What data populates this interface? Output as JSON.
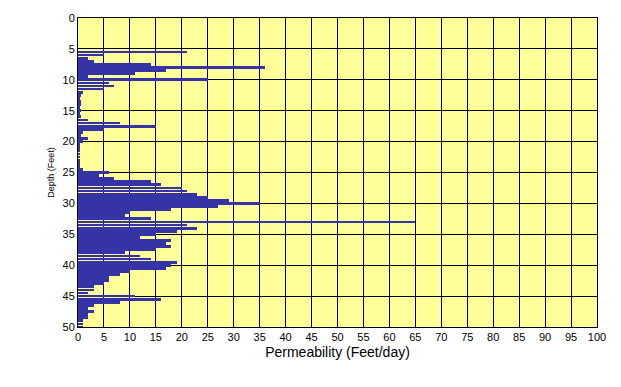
{
  "chart_data": {
    "type": "bar",
    "orientation": "horizontal",
    "xlabel": "Permeability (Feet/day)",
    "ylabel": "Depth (Feet)",
    "x": [
      5,
      5.5,
      6,
      6.5,
      7,
      7.5,
      8,
      8.5,
      9,
      9.5,
      10,
      10.5,
      11,
      11.5,
      12,
      12.5,
      13,
      13.5,
      14,
      14.5,
      15,
      15.5,
      16,
      16.5,
      17,
      17.5,
      18,
      18.5,
      19,
      19.5,
      20,
      20.5,
      21,
      21.5,
      22,
      22.5,
      23,
      23.5,
      24,
      24.5,
      25,
      25.5,
      26,
      26.5,
      27,
      27.5,
      28,
      28.5,
      29,
      29.5,
      30,
      30.5,
      31,
      31.5,
      32,
      32.5,
      33,
      33.5,
      34,
      34.5,
      35,
      35.5,
      36,
      36.5,
      37,
      37.5,
      38,
      38.5,
      39,
      39.5,
      40,
      40.5,
      41,
      41.5,
      42,
      42.5,
      43,
      43.5,
      44,
      44.5,
      45,
      45.5,
      46,
      46.5,
      47,
      47.5,
      48,
      48.5,
      49,
      49.5,
      50
    ],
    "values": [
      0,
      21,
      5,
      2,
      3,
      14,
      36,
      17,
      11,
      2,
      25,
      6,
      7,
      5,
      1,
      0.5,
      0.3,
      0.5,
      0.5,
      0.3,
      0.5,
      0.3,
      0.5,
      2,
      8,
      15,
      5,
      1,
      0.5,
      2,
      1,
      0.3,
      0.2,
      0.2,
      0.2,
      0.2,
      0.2,
      0.2,
      0.2,
      1,
      6,
      4,
      7,
      14,
      16,
      20,
      21,
      23,
      25,
      29,
      35,
      27,
      18,
      10,
      9,
      14,
      65,
      21,
      23,
      19,
      15,
      12,
      18,
      17,
      18,
      15,
      9,
      12,
      14,
      19,
      18,
      17,
      10,
      8,
      6,
      6,
      5,
      3,
      3,
      2,
      11,
      16,
      8,
      3,
      2,
      3,
      2,
      2,
      1,
      1,
      1
    ],
    "color": "#3434a6",
    "xlim": [
      0,
      100
    ],
    "xticks": [
      0,
      5,
      10,
      15,
      20,
      25,
      30,
      35,
      40,
      45,
      50,
      55,
      60,
      65,
      70,
      75,
      80,
      85,
      90,
      95,
      100
    ],
    "ylim": [
      50,
      0
    ],
    "yticks": [
      0,
      5,
      10,
      15,
      20,
      25,
      30,
      35,
      40,
      45,
      50
    ],
    "grid": true
  }
}
